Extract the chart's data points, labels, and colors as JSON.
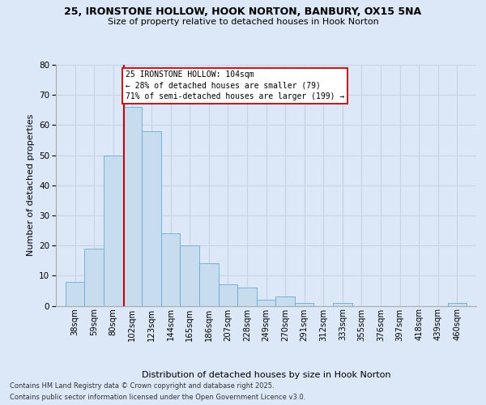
{
  "title1": "25, IRONSTONE HOLLOW, HOOK NORTON, BANBURY, OX15 5NA",
  "title2": "Size of property relative to detached houses in Hook Norton",
  "xlabel": "Distribution of detached houses by size in Hook Norton",
  "ylabel": "Number of detached properties",
  "categories": [
    "38sqm",
    "59sqm",
    "80sqm",
    "102sqm",
    "123sqm",
    "144sqm",
    "165sqm",
    "186sqm",
    "207sqm",
    "228sqm",
    "249sqm",
    "270sqm",
    "291sqm",
    "312sqm",
    "333sqm",
    "355sqm",
    "376sqm",
    "397sqm",
    "418sqm",
    "439sqm",
    "460sqm"
  ],
  "bar_heights": [
    8,
    19,
    50,
    66,
    66,
    58,
    58,
    24,
    24,
    20,
    20,
    14,
    14,
    7,
    7,
    6,
    6,
    2,
    3,
    3,
    1,
    1,
    1,
    0,
    1,
    0,
    0,
    0,
    0,
    1
  ],
  "bar_heights_final": [
    8,
    19,
    50,
    66,
    58,
    24,
    20,
    14,
    7,
    6,
    2,
    3,
    1,
    0,
    1,
    0,
    0,
    0,
    0,
    0,
    1
  ],
  "bar_color": "#c8dcf0",
  "bar_edge_color": "#6aaad4",
  "grid_color": "#c8d4e4",
  "background_color": "#dce8f8",
  "vline_color": "#cc0000",
  "annotation_text": "25 IRONSTONE HOLLOW: 104sqm\n← 28% of detached houses are smaller (79)\n71% of semi-detached houses are larger (199) →",
  "annotation_box_facecolor": "#ffffff",
  "annotation_box_edgecolor": "#cc0000",
  "xmin": 38,
  "bin_width": 21,
  "n_bins": 21,
  "ymax": 80,
  "yticks": [
    0,
    10,
    20,
    30,
    40,
    50,
    60,
    70,
    80
  ],
  "footnote1": "Contains HM Land Registry data © Crown copyright and database right 2025.",
  "footnote2": "Contains public sector information licensed under the Open Government Licence v3.0."
}
